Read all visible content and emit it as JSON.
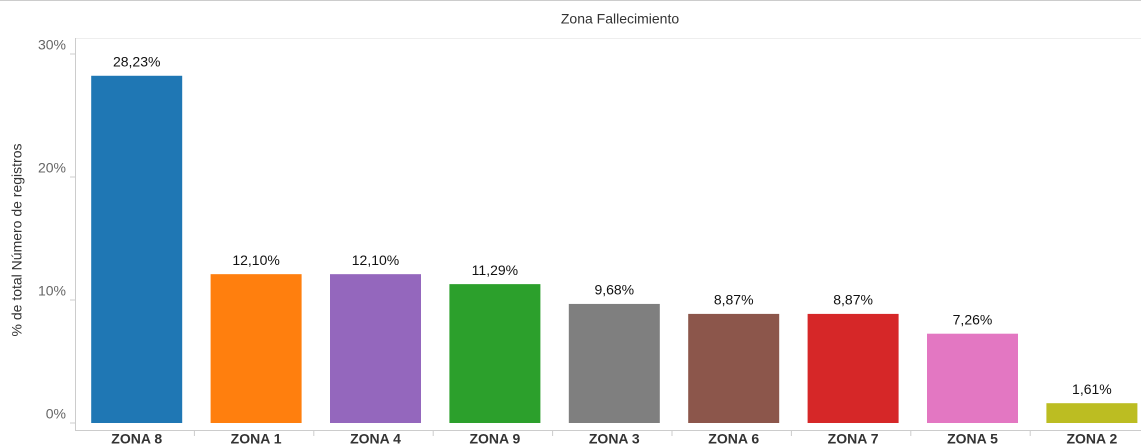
{
  "chart_data": {
    "type": "bar",
    "title": "Zona Fallecimiento",
    "y_label": "% de total Número de registros",
    "categories": [
      "ZONA 8",
      "ZONA 1",
      "ZONA 4",
      "ZONA 9",
      "ZONA 3",
      "ZONA 6",
      "ZONA 7",
      "ZONA 5",
      "ZONA 2"
    ],
    "values": [
      28.23,
      12.1,
      12.1,
      11.29,
      9.68,
      8.87,
      8.87,
      7.26,
      1.61
    ],
    "value_labels": [
      "28,23%",
      "12,10%",
      "12,10%",
      "11,29%",
      "9,68%",
      "8,87%",
      "8,87%",
      "7,26%",
      "1,61%"
    ],
    "colors": [
      "#1f77b4",
      "#ff7f0e",
      "#9467bd",
      "#2ca02c",
      "#7f7f7f",
      "#8c564b",
      "#d62728",
      "#e377c2",
      "#bcbd22"
    ],
    "ylim": [
      0,
      30
    ],
    "yticks": [
      {
        "value": 0,
        "label": "0%"
      },
      {
        "value": 10,
        "label": "10%"
      },
      {
        "value": 20,
        "label": "20%"
      },
      {
        "value": 30,
        "label": "30%"
      }
    ],
    "grid": false
  }
}
